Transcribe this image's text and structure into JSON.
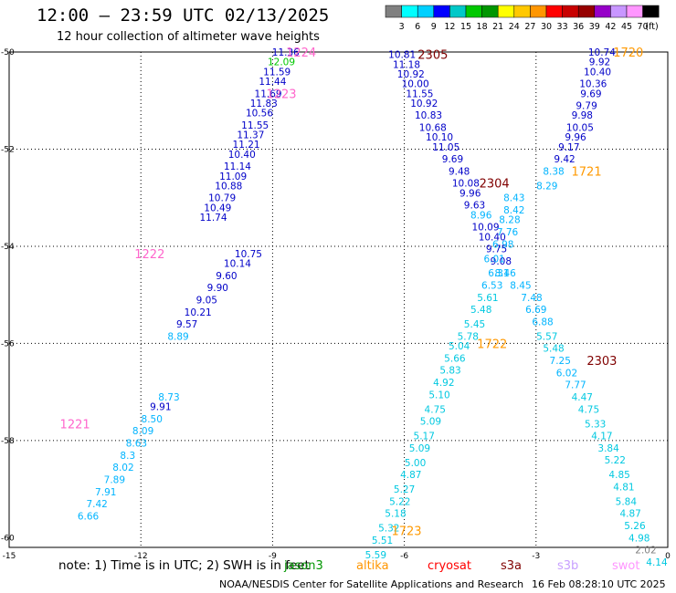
{
  "title": "12:00 — 23:59 UTC 02/13/2025",
  "subtitle": "12 hour collection of altimeter wave heights",
  "color_scale": {
    "unit": "(ft)",
    "ticks": [
      "3",
      "6",
      "9",
      "12",
      "15",
      "18",
      "21",
      "24",
      "27",
      "30",
      "33",
      "36",
      "39",
      "42",
      "45",
      "70"
    ],
    "colors": [
      "#808080",
      "#00ffff",
      "#00d0ff",
      "#0000ff",
      "#00c8c8",
      "#00c800",
      "#009600",
      "#ffff00",
      "#ffc800",
      "#ff9600",
      "#ff0000",
      "#c80000",
      "#960000",
      "#9600c8",
      "#c896ff",
      "#ff96ff",
      "#000000"
    ]
  },
  "axes": {
    "lat_labels": [
      "-50",
      "-52",
      "-54",
      "-56",
      "-58",
      "-60"
    ],
    "lon_labels": [
      "-15",
      "-12",
      "-9",
      "-6",
      "-3",
      "0"
    ]
  },
  "map_data": {
    "tracks": [
      {
        "id": "1221",
        "label_color": "#ff66cc",
        "label_lon": -13.5,
        "label_lat": -57.65,
        "points": [
          [
            -11.36,
            -57.1,
            "8.73"
          ],
          [
            -11.55,
            -57.3,
            "9.91"
          ],
          [
            -11.75,
            -57.55,
            "8.50"
          ],
          [
            -11.95,
            -57.8,
            "8.09"
          ],
          [
            -12.1,
            -58.05,
            "8.63"
          ],
          [
            -12.3,
            -58.3,
            "8.3"
          ],
          [
            -12.4,
            -58.55,
            "8.02"
          ],
          [
            -12.6,
            -58.8,
            "7.89"
          ],
          [
            -12.8,
            -59.05,
            "7.91"
          ],
          [
            -13.0,
            -59.3,
            "7.42"
          ],
          [
            -13.2,
            -59.55,
            "6.66"
          ]
        ]
      },
      {
        "id": "1222",
        "label_color": "#ff66cc",
        "label_lon": -11.8,
        "label_lat": -54.15,
        "points": [
          [
            -10.35,
            -53.4,
            "11.74"
          ],
          [
            -10.25,
            -53.2,
            "10.49"
          ],
          [
            -10.15,
            -53.0,
            "10.79"
          ],
          [
            -10.0,
            -52.75,
            "10.88"
          ],
          [
            -9.9,
            -52.55,
            "11.09"
          ],
          [
            -9.8,
            -52.35,
            "11.14"
          ],
          [
            -9.7,
            -52.1,
            "10.40"
          ],
          [
            -9.6,
            -51.9,
            "11.21"
          ],
          [
            -9.5,
            -51.7,
            "11.37"
          ],
          [
            -9.4,
            -51.5,
            "11.55"
          ],
          [
            -9.3,
            -51.25,
            "10.56"
          ],
          [
            -9.2,
            -51.05,
            "11.83"
          ],
          [
            -9.55,
            -54.15,
            "10.75"
          ],
          [
            -9.8,
            -54.35,
            "10.14"
          ],
          [
            -10.05,
            -54.6,
            "9.60"
          ],
          [
            -10.25,
            -54.85,
            "9.90"
          ],
          [
            -10.5,
            -55.1,
            "9.05"
          ],
          [
            -10.7,
            -55.35,
            "10.21"
          ],
          [
            -10.95,
            -55.6,
            "9.57"
          ],
          [
            -11.15,
            -55.85,
            "8.89"
          ]
        ]
      },
      {
        "id": "1223",
        "label_color": "#ff66cc",
        "label_lon": -8.8,
        "label_lat": -50.85,
        "points": [
          [
            -9.1,
            -50.85,
            "11.69"
          ],
          [
            -9.0,
            -50.6,
            "11.44"
          ],
          [
            -8.9,
            -50.4,
            "11.59"
          ],
          [
            -8.8,
            -50.2,
            "12.09"
          ],
          [
            -8.7,
            -50.0,
            "11.36"
          ]
        ]
      },
      {
        "id": "1224",
        "label_color": "#ff66cc",
        "label_lon": -8.35,
        "label_lat": -50.0,
        "points": []
      },
      {
        "id": "2305",
        "label_color": "#800000",
        "label_lon": -5.35,
        "label_lat": -50.05,
        "points": [
          [
            -6.05,
            -50.05,
            "10.81"
          ],
          [
            -5.95,
            -50.25,
            "11.18"
          ],
          [
            -5.85,
            -50.45,
            "10.92"
          ],
          [
            -5.75,
            -50.65,
            "10.00"
          ],
          [
            -5.65,
            -50.85,
            "11.55"
          ],
          [
            -5.55,
            -51.05,
            "10.92"
          ],
          [
            -5.45,
            -51.3,
            "10.83"
          ],
          [
            -5.35,
            -51.55,
            "10.68"
          ],
          [
            -5.2,
            -51.75,
            "10.10"
          ],
          [
            -5.05,
            -51.95,
            "11.05"
          ],
          [
            -4.9,
            -52.2,
            "9.69"
          ],
          [
            -4.75,
            -52.45,
            "9.48"
          ],
          [
            -4.6,
            -52.7,
            "10.08"
          ],
          [
            -4.5,
            -52.9,
            "9.96"
          ],
          [
            -4.4,
            -53.15,
            "9.63"
          ],
          [
            -4.25,
            -53.35,
            "8.96"
          ],
          [
            -4.15,
            -53.6,
            "10.09"
          ],
          [
            -4.0,
            -53.8,
            "10.40"
          ],
          [
            -3.9,
            -54.05,
            "9.75"
          ],
          [
            -3.8,
            -54.3,
            "9.08"
          ],
          [
            -3.7,
            -54.55,
            "8.46"
          ]
        ]
      },
      {
        "id": "2304",
        "label_color": "#800000",
        "label_lon": -3.95,
        "label_lat": -52.7,
        "points": [
          [
            -3.5,
            -53.0,
            "8.43"
          ],
          [
            -3.5,
            -53.25,
            "8.42"
          ],
          [
            -3.6,
            -53.45,
            "8.28"
          ],
          [
            -3.65,
            -53.7,
            "7.76"
          ],
          [
            -3.75,
            -53.95,
            "6.98"
          ],
          [
            -3.95,
            -54.25,
            "6.01"
          ],
          [
            -3.85,
            -54.55,
            "6.31"
          ],
          [
            -4.0,
            -54.8,
            "6.53"
          ],
          [
            -4.1,
            -55.05,
            "5.61"
          ],
          [
            -4.25,
            -55.3,
            "5.48"
          ],
          [
            -4.4,
            -55.6,
            "5.45"
          ],
          [
            -4.55,
            -55.85,
            "5.78"
          ]
        ]
      },
      {
        "id": "1722",
        "label_color": "#ff9900",
        "label_lon": -4.0,
        "label_lat": -56.0,
        "points": [
          [
            -4.75,
            -56.05,
            "5.04"
          ],
          [
            -4.85,
            -56.3,
            "5.66"
          ],
          [
            -4.95,
            -56.55,
            "5.83"
          ],
          [
            -5.1,
            -56.8,
            "4.92"
          ],
          [
            -5.2,
            -57.05,
            "5.10"
          ],
          [
            -5.3,
            -57.35,
            "4.75"
          ],
          [
            -5.4,
            -57.6,
            "5.09"
          ],
          [
            -5.55,
            -57.9,
            "5.17"
          ],
          [
            -5.65,
            -58.15,
            "5.09"
          ],
          [
            -5.75,
            -58.45,
            "5.00"
          ],
          [
            -5.85,
            -58.7,
            "4.87"
          ],
          [
            -6.0,
            -59.0,
            "5.27"
          ],
          [
            -6.1,
            -59.25,
            "5.22"
          ],
          [
            -6.2,
            -59.5,
            "5.18"
          ],
          [
            -6.35,
            -59.8,
            "5.32"
          ],
          [
            -6.5,
            -60.05,
            "5.51"
          ],
          [
            -6.65,
            -60.35,
            "5.59"
          ]
        ]
      },
      {
        "id": "1723",
        "label_color": "#ff9900",
        "label_lon": -5.95,
        "label_lat": -59.85,
        "points": []
      },
      {
        "id": "1720",
        "label_color": "#ff9900",
        "label_lon": -0.9,
        "label_lat": -50.0,
        "points": [
          [
            -1.5,
            -50.0,
            "10.74"
          ],
          [
            -1.55,
            -50.2,
            "9.92"
          ],
          [
            -1.6,
            -50.4,
            "10.40"
          ],
          [
            -1.7,
            -50.65,
            "10.36"
          ],
          [
            -1.75,
            -50.85,
            "9.69"
          ],
          [
            -1.85,
            -51.1,
            "9.79"
          ],
          [
            -1.95,
            -51.3,
            "9.98"
          ],
          [
            -2.0,
            -51.55,
            "10.05"
          ],
          [
            -2.1,
            -51.75,
            "9.96"
          ],
          [
            -2.25,
            -51.95,
            "9.17"
          ],
          [
            -2.35,
            -52.2,
            "9.42"
          ],
          [
            -2.6,
            -52.45,
            "8.38"
          ],
          [
            -2.75,
            -52.75,
            "8.29"
          ]
        ]
      },
      {
        "id": "1721",
        "label_color": "#ff9900",
        "label_lon": -1.85,
        "label_lat": -52.45,
        "points": []
      },
      {
        "id": "2303",
        "label_color": "#800000",
        "label_lon": -1.5,
        "label_lat": -56.35,
        "points": [
          [
            -3.35,
            -54.8,
            "8.45"
          ],
          [
            -3.1,
            -55.05,
            "7.48"
          ],
          [
            -3.0,
            -55.3,
            "6.69"
          ],
          [
            -2.85,
            -55.55,
            "6.88"
          ],
          [
            -2.75,
            -55.85,
            "5.57"
          ],
          [
            -2.6,
            -56.1,
            "5.48"
          ],
          [
            -2.45,
            -56.35,
            "7.25"
          ],
          [
            -2.3,
            -56.6,
            "6.02"
          ],
          [
            -2.1,
            -56.85,
            "7.77"
          ],
          [
            -1.95,
            -57.1,
            "4.47"
          ],
          [
            -1.8,
            -57.35,
            "4.75"
          ],
          [
            -1.65,
            -57.65,
            "5.33"
          ],
          [
            -1.5,
            -57.9,
            "4.17"
          ],
          [
            -1.35,
            -58.15,
            "3.84"
          ],
          [
            -1.2,
            -58.4,
            "5.22"
          ],
          [
            -1.1,
            -58.7,
            "4.85"
          ],
          [
            -1.0,
            -58.95,
            "4.81"
          ],
          [
            -0.95,
            -59.25,
            "5.84"
          ],
          [
            -0.85,
            -59.5,
            "4.87"
          ],
          [
            -0.75,
            -59.75,
            "5.26"
          ],
          [
            -0.65,
            -60.0,
            "4.98"
          ],
          [
            -0.5,
            -60.25,
            "2.02"
          ],
          [
            -0.25,
            -60.5,
            "4.14"
          ]
        ]
      }
    ]
  },
  "note": "note: 1) Time is in UTC; 2) SWH is in feet",
  "legend": [
    {
      "label": "jason3",
      "color": "#009600"
    },
    {
      "label": "altika",
      "color": "#ff9600"
    },
    {
      "label": "cryosat",
      "color": "#ff0000"
    },
    {
      "label": "s3a",
      "color": "#800000"
    },
    {
      "label": "s3b",
      "color": "#c8a0ff"
    },
    {
      "label": "swot",
      "color": "#ff96ff"
    }
  ],
  "credit": "NOAA/NESDIS Center for Satellite Applications and Research",
  "timestamp": "16 Feb 08:28:10 UTC 2025"
}
